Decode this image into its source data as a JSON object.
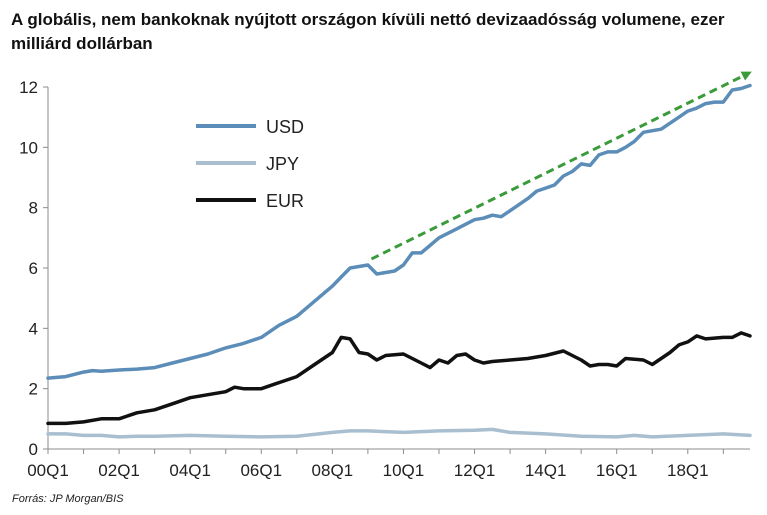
{
  "chart_data": {
    "type": "line",
    "title": "A globális, nem bankoknak nyújtott országon kívüli nettó devizaadósság volumene, ezer milliárd dollárban",
    "source": "Forrás: JP Morgan/BIS",
    "xlabel": "",
    "ylabel": "",
    "ylim": [
      0,
      12
    ],
    "yticks": [
      0,
      2,
      4,
      6,
      8,
      10,
      12
    ],
    "x_range": [
      2000.0,
      2019.75
    ],
    "xticks": [
      {
        "x": 2000.0,
        "label": "00Q1"
      },
      {
        "x": 2002.0,
        "label": "02Q1"
      },
      {
        "x": 2004.0,
        "label": "04Q1"
      },
      {
        "x": 2006.0,
        "label": "06Q1"
      },
      {
        "x": 2008.0,
        "label": "08Q1"
      },
      {
        "x": 2010.0,
        "label": "10Q1"
      },
      {
        "x": 2012.0,
        "label": "12Q1"
      },
      {
        "x": 2014.0,
        "label": "14Q1"
      },
      {
        "x": 2016.0,
        "label": "16Q1"
      },
      {
        "x": 2018.0,
        "label": "18Q1"
      }
    ],
    "grid": false,
    "legend_position": "top-left",
    "series": [
      {
        "name": "USD",
        "color": "#5b8db8",
        "points": [
          [
            2000.0,
            2.35
          ],
          [
            2000.5,
            2.4
          ],
          [
            2001.0,
            2.55
          ],
          [
            2001.25,
            2.6
          ],
          [
            2001.5,
            2.58
          ],
          [
            2002.0,
            2.62
          ],
          [
            2002.5,
            2.65
          ],
          [
            2003.0,
            2.7
          ],
          [
            2003.5,
            2.85
          ],
          [
            2004.0,
            3.0
          ],
          [
            2004.5,
            3.15
          ],
          [
            2005.0,
            3.35
          ],
          [
            2005.5,
            3.5
          ],
          [
            2006.0,
            3.7
          ],
          [
            2006.5,
            4.1
          ],
          [
            2007.0,
            4.4
          ],
          [
            2007.5,
            4.9
          ],
          [
            2008.0,
            5.4
          ],
          [
            2008.25,
            5.7
          ],
          [
            2008.5,
            6.0
          ],
          [
            2009.0,
            6.1
          ],
          [
            2009.25,
            5.8
          ],
          [
            2009.75,
            5.9
          ],
          [
            2010.0,
            6.1
          ],
          [
            2010.25,
            6.5
          ],
          [
            2010.5,
            6.5
          ],
          [
            2010.75,
            6.75
          ],
          [
            2011.0,
            7.0
          ],
          [
            2011.5,
            7.3
          ],
          [
            2012.0,
            7.6
          ],
          [
            2012.25,
            7.65
          ],
          [
            2012.5,
            7.75
          ],
          [
            2012.75,
            7.7
          ],
          [
            2013.0,
            7.9
          ],
          [
            2013.5,
            8.3
          ],
          [
            2013.75,
            8.55
          ],
          [
            2014.0,
            8.65
          ],
          [
            2014.25,
            8.75
          ],
          [
            2014.5,
            9.05
          ],
          [
            2014.75,
            9.2
          ],
          [
            2015.0,
            9.45
          ],
          [
            2015.25,
            9.4
          ],
          [
            2015.5,
            9.75
          ],
          [
            2015.75,
            9.85
          ],
          [
            2016.0,
            9.85
          ],
          [
            2016.25,
            10.0
          ],
          [
            2016.5,
            10.2
          ],
          [
            2016.75,
            10.5
          ],
          [
            2017.0,
            10.55
          ],
          [
            2017.25,
            10.6
          ],
          [
            2017.5,
            10.8
          ],
          [
            2017.75,
            11.0
          ],
          [
            2018.0,
            11.2
          ],
          [
            2018.25,
            11.3
          ],
          [
            2018.5,
            11.45
          ],
          [
            2018.75,
            11.5
          ],
          [
            2019.0,
            11.5
          ],
          [
            2019.25,
            11.9
          ],
          [
            2019.5,
            11.95
          ],
          [
            2019.75,
            12.05
          ]
        ]
      },
      {
        "name": "JPY",
        "color": "#a9bfcf",
        "points": [
          [
            2000.0,
            0.5
          ],
          [
            2000.5,
            0.5
          ],
          [
            2001.0,
            0.45
          ],
          [
            2001.5,
            0.45
          ],
          [
            2002.0,
            0.4
          ],
          [
            2002.5,
            0.42
          ],
          [
            2003.0,
            0.42
          ],
          [
            2004.0,
            0.45
          ],
          [
            2005.0,
            0.42
          ],
          [
            2006.0,
            0.4
          ],
          [
            2007.0,
            0.42
          ],
          [
            2008.0,
            0.55
          ],
          [
            2008.5,
            0.6
          ],
          [
            2009.0,
            0.6
          ],
          [
            2010.0,
            0.55
          ],
          [
            2011.0,
            0.6
          ],
          [
            2012.0,
            0.62
          ],
          [
            2012.5,
            0.65
          ],
          [
            2013.0,
            0.55
          ],
          [
            2014.0,
            0.5
          ],
          [
            2015.0,
            0.42
          ],
          [
            2016.0,
            0.4
          ],
          [
            2016.5,
            0.45
          ],
          [
            2017.0,
            0.4
          ],
          [
            2018.0,
            0.45
          ],
          [
            2019.0,
            0.5
          ],
          [
            2019.75,
            0.45
          ]
        ]
      },
      {
        "name": "EUR",
        "color": "#111111",
        "points": [
          [
            2000.0,
            0.85
          ],
          [
            2000.5,
            0.85
          ],
          [
            2001.0,
            0.9
          ],
          [
            2001.5,
            1.0
          ],
          [
            2002.0,
            1.0
          ],
          [
            2002.5,
            1.2
          ],
          [
            2003.0,
            1.3
          ],
          [
            2003.5,
            1.5
          ],
          [
            2004.0,
            1.7
          ],
          [
            2004.5,
            1.8
          ],
          [
            2005.0,
            1.9
          ],
          [
            2005.25,
            2.05
          ],
          [
            2005.5,
            2.0
          ],
          [
            2006.0,
            2.0
          ],
          [
            2006.5,
            2.2
          ],
          [
            2007.0,
            2.4
          ],
          [
            2007.5,
            2.8
          ],
          [
            2008.0,
            3.2
          ],
          [
            2008.25,
            3.7
          ],
          [
            2008.5,
            3.65
          ],
          [
            2008.75,
            3.2
          ],
          [
            2009.0,
            3.15
          ],
          [
            2009.25,
            2.95
          ],
          [
            2009.5,
            3.1
          ],
          [
            2010.0,
            3.15
          ],
          [
            2010.25,
            3.0
          ],
          [
            2010.5,
            2.85
          ],
          [
            2010.75,
            2.7
          ],
          [
            2011.0,
            2.95
          ],
          [
            2011.25,
            2.85
          ],
          [
            2011.5,
            3.1
          ],
          [
            2011.75,
            3.15
          ],
          [
            2012.0,
            2.95
          ],
          [
            2012.25,
            2.85
          ],
          [
            2012.5,
            2.9
          ],
          [
            2013.0,
            2.95
          ],
          [
            2013.5,
            3.0
          ],
          [
            2014.0,
            3.1
          ],
          [
            2014.5,
            3.25
          ],
          [
            2015.0,
            2.95
          ],
          [
            2015.25,
            2.75
          ],
          [
            2015.5,
            2.8
          ],
          [
            2015.75,
            2.8
          ],
          [
            2016.0,
            2.75
          ],
          [
            2016.25,
            3.0
          ],
          [
            2016.75,
            2.95
          ],
          [
            2017.0,
            2.8
          ],
          [
            2017.5,
            3.2
          ],
          [
            2017.75,
            3.45
          ],
          [
            2018.0,
            3.55
          ],
          [
            2018.25,
            3.75
          ],
          [
            2018.5,
            3.65
          ],
          [
            2019.0,
            3.7
          ],
          [
            2019.25,
            3.7
          ],
          [
            2019.5,
            3.85
          ],
          [
            2019.75,
            3.75
          ]
        ]
      }
    ],
    "annotations": [
      {
        "type": "arrow",
        "style": "dashed",
        "color": "#3a9b3a",
        "from": [
          2009.1,
          6.3
        ],
        "to": [
          2019.7,
          12.45
        ]
      }
    ]
  }
}
